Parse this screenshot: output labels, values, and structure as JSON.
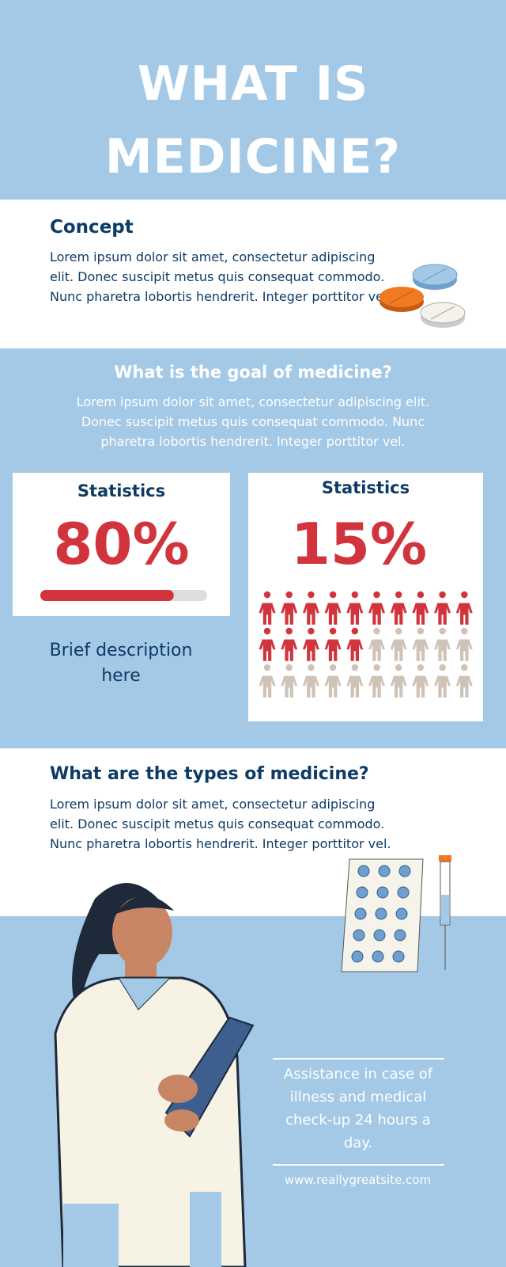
{
  "header": {
    "title": "WHAT IS MEDICINE?"
  },
  "concept": {
    "heading": "Concept",
    "text": "Lorem ipsum dolor sit amet, consectetur adipiscing elit. Donec suscipit metus quis consequat commodo. Nunc pharetra lobortis hendrerit. Integer porttitor vel."
  },
  "goal": {
    "heading": "What is the goal of medicine?",
    "text": "Lorem ipsum dolor sit amet, consectetur adipiscing elit. Donec suscipit metus quis consequat commodo. Nunc pharetra lobortis hendrerit. Integer porttitor vel."
  },
  "stats": [
    {
      "title": "Statistics",
      "value": 80,
      "value_label": "80%",
      "range": [
        0,
        100
      ],
      "color": "#d1343c",
      "track_color": "#dedede"
    },
    {
      "title": "Statistics",
      "value": 15,
      "value_label": "15%",
      "range": [
        0,
        30
      ],
      "color": "#d1343c",
      "track_color": "#cfc3b8"
    }
  ],
  "brief": "Brief description here",
  "types": {
    "heading": "What are the types of medicine?",
    "text": "Lorem ipsum dolor sit amet, consectetur adipiscing elit. Donec suscipit metus quis consequat commodo. Nunc pharetra lobortis hendrerit. Integer porttitor vel."
  },
  "footer": {
    "text": "Assistance in case of illness and medical check-up 24 hours a day.",
    "url": "www.reallygreatsite.com"
  }
}
